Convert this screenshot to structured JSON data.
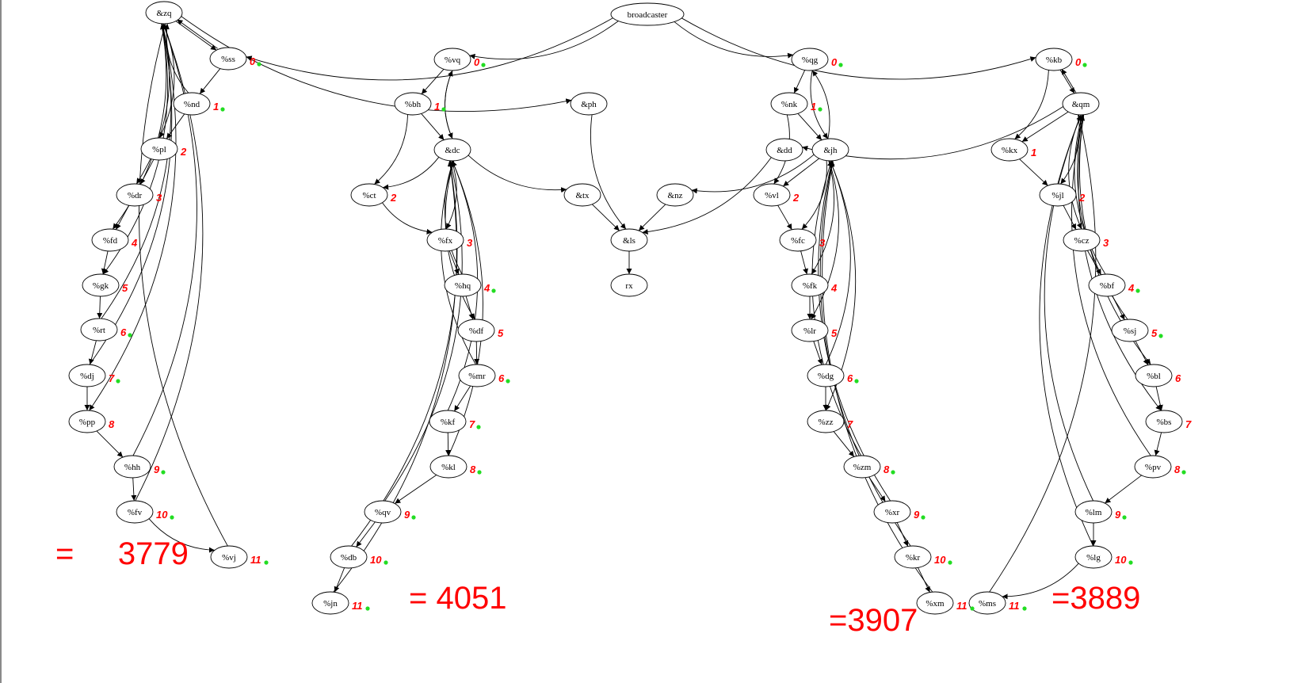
{
  "diagram": {
    "nodes": [
      {
        "id": "zq",
        "label": "&zq"
      },
      {
        "id": "ss",
        "label": "%ss"
      },
      {
        "id": "nd",
        "label": "%nd"
      },
      {
        "id": "pl",
        "label": "%pl"
      },
      {
        "id": "dr",
        "label": "%dr"
      },
      {
        "id": "fd",
        "label": "%fd"
      },
      {
        "id": "gk",
        "label": "%gk"
      },
      {
        "id": "rt",
        "label": "%rt"
      },
      {
        "id": "dj",
        "label": "%dj"
      },
      {
        "id": "pp",
        "label": "%pp"
      },
      {
        "id": "hh",
        "label": "%hh"
      },
      {
        "id": "fv",
        "label": "%fv"
      },
      {
        "id": "vj",
        "label": "%vj"
      },
      {
        "id": "broadcaster",
        "label": "broadcaster"
      },
      {
        "id": "vq",
        "label": "%vq"
      },
      {
        "id": "bh",
        "label": "%bh"
      },
      {
        "id": "dc",
        "label": "&dc"
      },
      {
        "id": "ct",
        "label": "%ct"
      },
      {
        "id": "fx",
        "label": "%fx"
      },
      {
        "id": "hq",
        "label": "%hq"
      },
      {
        "id": "df",
        "label": "%df"
      },
      {
        "id": "mr",
        "label": "%mr"
      },
      {
        "id": "kf",
        "label": "%kf"
      },
      {
        "id": "kl",
        "label": "%kl"
      },
      {
        "id": "qv",
        "label": "%qv"
      },
      {
        "id": "db",
        "label": "%db"
      },
      {
        "id": "jn",
        "label": "%jn"
      },
      {
        "id": "ph",
        "label": "&ph"
      },
      {
        "id": "tx",
        "label": "&tx"
      },
      {
        "id": "nz",
        "label": "&nz"
      },
      {
        "id": "ls",
        "label": "&ls"
      },
      {
        "id": "rx",
        "label": "rx"
      },
      {
        "id": "qg",
        "label": "%qg"
      },
      {
        "id": "nk",
        "label": "%nk"
      },
      {
        "id": "dd",
        "label": "&dd"
      },
      {
        "id": "jh",
        "label": "&jh"
      },
      {
        "id": "vl",
        "label": "%vl"
      },
      {
        "id": "fc",
        "label": "%fc"
      },
      {
        "id": "fk",
        "label": "%fk"
      },
      {
        "id": "lr",
        "label": "%lr"
      },
      {
        "id": "dg",
        "label": "%dg"
      },
      {
        "id": "zz",
        "label": "%zz"
      },
      {
        "id": "zm",
        "label": "%zm"
      },
      {
        "id": "xr",
        "label": "%xr"
      },
      {
        "id": "kr",
        "label": "%kr"
      },
      {
        "id": "xm",
        "label": "%xm"
      },
      {
        "id": "kb",
        "label": "%kb"
      },
      {
        "id": "qm",
        "label": "&qm"
      },
      {
        "id": "kx",
        "label": "%kx"
      },
      {
        "id": "jl",
        "label": "%jl"
      },
      {
        "id": "cz",
        "label": "%cz"
      },
      {
        "id": "bf",
        "label": "%bf"
      },
      {
        "id": "sj",
        "label": "%sj"
      },
      {
        "id": "bl",
        "label": "%bl"
      },
      {
        "id": "bs",
        "label": "%bs"
      },
      {
        "id": "pv",
        "label": "%pv"
      },
      {
        "id": "lm",
        "label": "%lm"
      },
      {
        "id": "lg",
        "label": "%lg"
      },
      {
        "id": "ms",
        "label": "%ms"
      }
    ],
    "edges": [
      [
        "broadcaster",
        "ss"
      ],
      [
        "broadcaster",
        "vq"
      ],
      [
        "broadcaster",
        "qg"
      ],
      [
        "broadcaster",
        "kb"
      ],
      [
        "zq",
        "ss"
      ],
      [
        "ss",
        "zq"
      ],
      [
        "ss",
        "nd"
      ],
      [
        "nd",
        "pl"
      ],
      [
        "nd",
        "zq"
      ],
      [
        "pl",
        "dr"
      ],
      [
        "dr",
        "fd"
      ],
      [
        "fd",
        "gk"
      ],
      [
        "gk",
        "rt"
      ],
      [
        "rt",
        "dj"
      ],
      [
        "rt",
        "zq"
      ],
      [
        "dj",
        "pp"
      ],
      [
        "dj",
        "zq"
      ],
      [
        "pp",
        "hh"
      ],
      [
        "hh",
        "fv"
      ],
      [
        "hh",
        "zq"
      ],
      [
        "fv",
        "vj"
      ],
      [
        "fv",
        "zq"
      ],
      [
        "vj",
        "zq"
      ],
      [
        "zq",
        "pl"
      ],
      [
        "zq",
        "dr"
      ],
      [
        "zq",
        "fd"
      ],
      [
        "zq",
        "gk"
      ],
      [
        "zq",
        "pp"
      ],
      [
        "zq",
        "ph"
      ],
      [
        "vq",
        "bh"
      ],
      [
        "vq",
        "dc"
      ],
      [
        "dc",
        "vq"
      ],
      [
        "bh",
        "dc"
      ],
      [
        "bh",
        "ct"
      ],
      [
        "ct",
        "fx"
      ],
      [
        "fx",
        "hq"
      ],
      [
        "hq",
        "df"
      ],
      [
        "df",
        "mr"
      ],
      [
        "mr",
        "kf"
      ],
      [
        "kf",
        "kl"
      ],
      [
        "kl",
        "qv"
      ],
      [
        "qv",
        "db"
      ],
      [
        "db",
        "jn"
      ],
      [
        "dc",
        "ct"
      ],
      [
        "dc",
        "fx"
      ],
      [
        "dc",
        "df"
      ],
      [
        "dc",
        "tx"
      ],
      [
        "hq",
        "dc"
      ],
      [
        "mr",
        "dc"
      ],
      [
        "kf",
        "dc"
      ],
      [
        "kl",
        "dc"
      ],
      [
        "qv",
        "dc"
      ],
      [
        "db",
        "dc"
      ],
      [
        "jn",
        "dc"
      ],
      [
        "ph",
        "ls"
      ],
      [
        "tx",
        "ls"
      ],
      [
        "nz",
        "ls"
      ],
      [
        "dd",
        "ls"
      ],
      [
        "ls",
        "rx"
      ],
      [
        "qg",
        "nk"
      ],
      [
        "qg",
        "jh"
      ],
      [
        "jh",
        "qg"
      ],
      [
        "nk",
        "jh"
      ],
      [
        "nk",
        "vl"
      ],
      [
        "vl",
        "fc"
      ],
      [
        "fc",
        "fk"
      ],
      [
        "fk",
        "lr"
      ],
      [
        "lr",
        "dg"
      ],
      [
        "dg",
        "zz"
      ],
      [
        "zz",
        "zm"
      ],
      [
        "zm",
        "xr"
      ],
      [
        "xr",
        "kr"
      ],
      [
        "kr",
        "xm"
      ],
      [
        "jh",
        "nz"
      ],
      [
        "jh",
        "vl"
      ],
      [
        "jh",
        "fc"
      ],
      [
        "jh",
        "fk"
      ],
      [
        "jh",
        "lr"
      ],
      [
        "jh",
        "zz"
      ],
      [
        "dg",
        "jh"
      ],
      [
        "zm",
        "jh"
      ],
      [
        "xr",
        "jh"
      ],
      [
        "kr",
        "jh"
      ],
      [
        "xm",
        "jh"
      ],
      [
        "kb",
        "qm"
      ],
      [
        "qm",
        "kb"
      ],
      [
        "kb",
        "kx"
      ],
      [
        "kx",
        "jl"
      ],
      [
        "jl",
        "cz"
      ],
      [
        "cz",
        "bf"
      ],
      [
        "bf",
        "sj"
      ],
      [
        "sj",
        "bl"
      ],
      [
        "bl",
        "bs"
      ],
      [
        "bs",
        "pv"
      ],
      [
        "pv",
        "lm"
      ],
      [
        "lm",
        "lg"
      ],
      [
        "lg",
        "ms"
      ],
      [
        "qm",
        "dd"
      ],
      [
        "qm",
        "kx"
      ],
      [
        "qm",
        "jl"
      ],
      [
        "qm",
        "cz"
      ],
      [
        "qm",
        "bl"
      ],
      [
        "qm",
        "bs"
      ],
      [
        "bf",
        "qm"
      ],
      [
        "sj",
        "qm"
      ],
      [
        "pv",
        "qm"
      ],
      [
        "lm",
        "qm"
      ],
      [
        "lg",
        "qm"
      ],
      [
        "ms",
        "qm"
      ]
    ]
  },
  "annotations": {
    "totals": [
      "=     3779",
      "= 4051",
      "=3907",
      "=3889"
    ],
    "marks": [
      {
        "node": "ss",
        "text": "0",
        "dot": true
      },
      {
        "node": "nd",
        "text": "1",
        "dot": true
      },
      {
        "node": "pl",
        "text": "2",
        "dot": false
      },
      {
        "node": "dr",
        "text": "3",
        "dot": false
      },
      {
        "node": "fd",
        "text": "4",
        "dot": false
      },
      {
        "node": "gk",
        "text": "5",
        "dot": false
      },
      {
        "node": "rt",
        "text": "6",
        "dot": true
      },
      {
        "node": "dj",
        "text": "7",
        "dot": true
      },
      {
        "node": "pp",
        "text": "8",
        "dot": false
      },
      {
        "node": "hh",
        "text": "9",
        "dot": true
      },
      {
        "node": "fv",
        "text": "10",
        "dot": true
      },
      {
        "node": "vj",
        "text": "11",
        "dot": true
      },
      {
        "node": "vq",
        "text": "0",
        "dot": true
      },
      {
        "node": "bh",
        "text": "1",
        "dot": true
      },
      {
        "node": "ct",
        "text": "2",
        "dot": false
      },
      {
        "node": "fx",
        "text": "3",
        "dot": false
      },
      {
        "node": "hq",
        "text": "4",
        "dot": true
      },
      {
        "node": "df",
        "text": "5",
        "dot": false
      },
      {
        "node": "mr",
        "text": "6",
        "dot": true
      },
      {
        "node": "kf",
        "text": "7",
        "dot": true
      },
      {
        "node": "kl",
        "text": "8",
        "dot": true
      },
      {
        "node": "qv",
        "text": "9",
        "dot": true
      },
      {
        "node": "db",
        "text": "10",
        "dot": true
      },
      {
        "node": "jn",
        "text": "11",
        "dot": true
      },
      {
        "node": "qg",
        "text": "0",
        "dot": true
      },
      {
        "node": "nk",
        "text": "1",
        "dot": true
      },
      {
        "node": "vl",
        "text": "2",
        "dot": false
      },
      {
        "node": "fc",
        "text": "3",
        "dot": false
      },
      {
        "node": "fk",
        "text": "4",
        "dot": false
      },
      {
        "node": "lr",
        "text": "5",
        "dot": false
      },
      {
        "node": "dg",
        "text": "6",
        "dot": true
      },
      {
        "node": "zz",
        "text": "7",
        "dot": false
      },
      {
        "node": "zm",
        "text": "8",
        "dot": true
      },
      {
        "node": "xr",
        "text": "9",
        "dot": true
      },
      {
        "node": "kr",
        "text": "10",
        "dot": true
      },
      {
        "node": "xm",
        "text": "11",
        "dot": true
      },
      {
        "node": "kb",
        "text": "0",
        "dot": true
      },
      {
        "node": "kx",
        "text": "1",
        "dot": false
      },
      {
        "node": "jl",
        "text": "2",
        "dot": false
      },
      {
        "node": "cz",
        "text": "3",
        "dot": false
      },
      {
        "node": "bf",
        "text": "4",
        "dot": true
      },
      {
        "node": "sj",
        "text": "5",
        "dot": true
      },
      {
        "node": "bl",
        "text": "6",
        "dot": false
      },
      {
        "node": "bs",
        "text": "7",
        "dot": false
      },
      {
        "node": "pv",
        "text": "8",
        "dot": true
      },
      {
        "node": "lm",
        "text": "9",
        "dot": true
      },
      {
        "node": "lg",
        "text": "10",
        "dot": true
      },
      {
        "node": "ms",
        "text": "11",
        "dot": true
      }
    ]
  },
  "colors": {
    "annotation": "#ff0000",
    "dot": "#22dd22",
    "edge": "#000000",
    "border": "#8a8a8a"
  }
}
